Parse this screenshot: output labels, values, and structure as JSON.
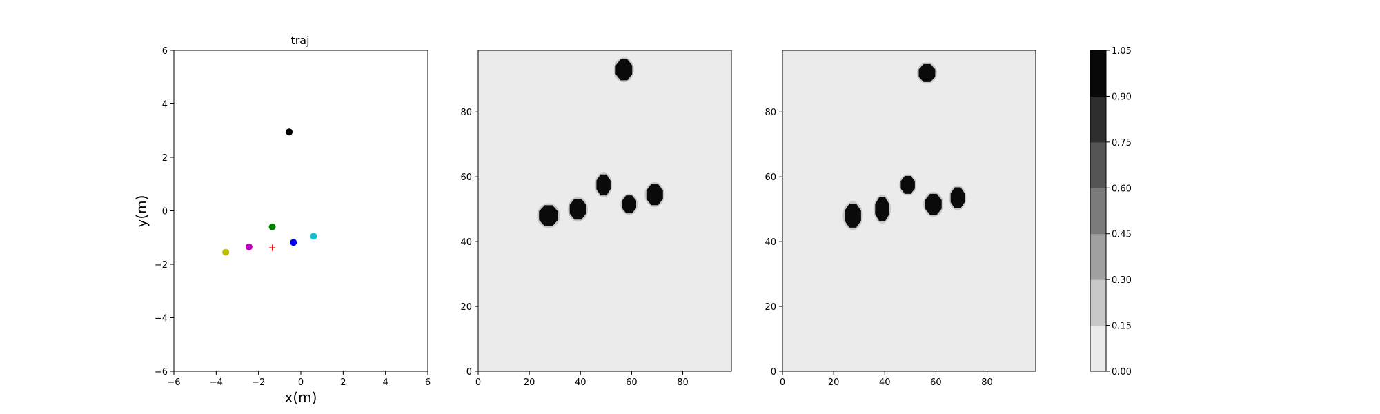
{
  "chart_data": [
    {
      "type": "scatter",
      "title": "traj",
      "xlabel": "x(m)",
      "ylabel": "y(m)",
      "xlim": [
        -6,
        6
      ],
      "ylim": [
        -6,
        6
      ],
      "xticks": [
        -6,
        -4,
        -2,
        0,
        2,
        4,
        6
      ],
      "yticks": [
        -6,
        -4,
        -2,
        0,
        2,
        4,
        6
      ],
      "grid": false,
      "points": [
        {
          "x": -0.55,
          "y": 2.95,
          "color": "#000000",
          "marker": "circle"
        },
        {
          "x": -1.35,
          "y": -0.6,
          "color": "#008000",
          "marker": "circle"
        },
        {
          "x": 0.6,
          "y": -0.95,
          "color": "#17becf",
          "marker": "circle"
        },
        {
          "x": -0.35,
          "y": -1.18,
          "color": "#0000ff",
          "marker": "circle"
        },
        {
          "x": -2.45,
          "y": -1.35,
          "color": "#bf00bf",
          "marker": "circle"
        },
        {
          "x": -3.55,
          "y": -1.55,
          "color": "#bfbf00",
          "marker": "circle"
        },
        {
          "x": -1.35,
          "y": -1.38,
          "color": "#ff0000",
          "marker": "plus"
        }
      ]
    },
    {
      "type": "heatmap",
      "xlim": [
        0,
        99
      ],
      "ylim": [
        0,
        99
      ],
      "xticks": [
        0,
        20,
        40,
        60,
        80
      ],
      "yticks": [
        0,
        20,
        40,
        60,
        80
      ],
      "background_value": 0.05,
      "blobs": [
        {
          "x": 57,
          "y": 93,
          "rx": 3.5,
          "ry": 3.5,
          "value": 1.0
        },
        {
          "x": 49,
          "y": 57.5,
          "rx": 3.0,
          "ry": 3.5,
          "value": 1.0
        },
        {
          "x": 69,
          "y": 54.5,
          "rx": 3.5,
          "ry": 3.5,
          "value": 1.0
        },
        {
          "x": 59,
          "y": 51.5,
          "rx": 3.0,
          "ry": 3.0,
          "value": 1.0
        },
        {
          "x": 39,
          "y": 50,
          "rx": 3.5,
          "ry": 3.5,
          "value": 1.0
        },
        {
          "x": 27.5,
          "y": 48,
          "rx": 4.0,
          "ry": 3.5,
          "value": 1.0
        }
      ]
    },
    {
      "type": "heatmap",
      "xlim": [
        0,
        99
      ],
      "ylim": [
        0,
        99
      ],
      "xticks": [
        0,
        20,
        40,
        60,
        80
      ],
      "yticks": [
        0,
        20,
        40,
        60,
        80
      ],
      "background_value": 0.05,
      "blobs": [
        {
          "x": 56.5,
          "y": 92,
          "rx": 3.5,
          "ry": 3.0,
          "value": 1.0
        },
        {
          "x": 49,
          "y": 57.5,
          "rx": 3.0,
          "ry": 3.0,
          "value": 1.0
        },
        {
          "x": 68.5,
          "y": 53.5,
          "rx": 3.0,
          "ry": 3.5,
          "value": 1.0
        },
        {
          "x": 59,
          "y": 51.5,
          "rx": 3.5,
          "ry": 3.5,
          "value": 1.0
        },
        {
          "x": 39,
          "y": 50,
          "rx": 3.0,
          "ry": 4.0,
          "value": 1.0
        },
        {
          "x": 27.5,
          "y": 48,
          "rx": 3.5,
          "ry": 4.0,
          "value": 1.0
        }
      ]
    }
  ],
  "colorbar": {
    "ticks": [
      "0.00",
      "0.15",
      "0.30",
      "0.45",
      "0.60",
      "0.75",
      "0.90",
      "1.05"
    ],
    "levels": [
      0.0,
      0.15,
      0.3,
      0.45,
      0.6,
      0.75,
      0.9,
      1.05
    ],
    "colors": [
      "#ebebeb",
      "#c7c7c7",
      "#a0a0a0",
      "#7a7a7a",
      "#555555",
      "#2e2e2e",
      "#080808"
    ]
  }
}
